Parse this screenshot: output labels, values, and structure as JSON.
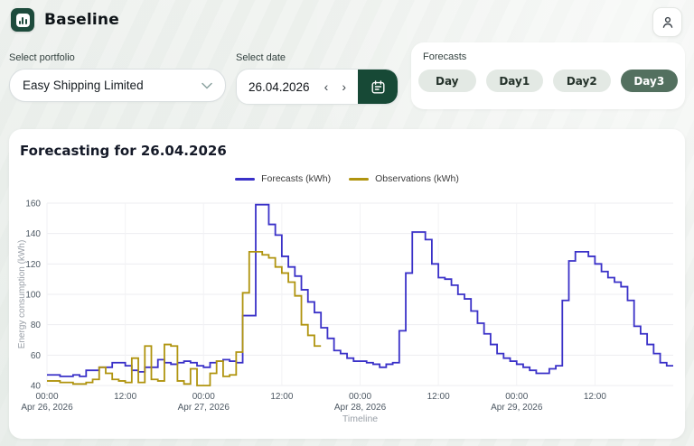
{
  "header": {
    "app_title": "Baseline"
  },
  "filters": {
    "portfolio_label": "Select portfolio",
    "portfolio_value": "Easy Shipping Limited",
    "date_label": "Select date",
    "date_value": "26.04.2026",
    "prev_char": "‹",
    "next_char": "›"
  },
  "forecasts_panel": {
    "title": "Forecasts",
    "options": [
      {
        "label": "Day",
        "selected": false
      },
      {
        "label": "Day1",
        "selected": false
      },
      {
        "label": "Day2",
        "selected": false
      },
      {
        "label": "Day3",
        "selected": true
      }
    ]
  },
  "chart": {
    "title": "Forecasting for 26.04.2026"
  },
  "colors": {
    "brand_green": "#174936",
    "selected_pill_green": "#53705f",
    "forecast_line": "#3a31c8",
    "observation_line": "#b0940f"
  },
  "chart_data": {
    "type": "line",
    "step": true,
    "title": "Forecasting for 26.04.2026",
    "xlabel": "Timeline",
    "ylabel": "Energy  consumption (kWh)",
    "ylim": [
      40,
      160
    ],
    "y_ticks": [
      40,
      60,
      80,
      100,
      120,
      140,
      160
    ],
    "x_total_hours": 96,
    "x_ticks": [
      {
        "hour": 0,
        "time": "00:00",
        "date": "Apr 26, 2026"
      },
      {
        "hour": 12,
        "time": "12:00"
      },
      {
        "hour": 24,
        "time": "00:00",
        "date": "Apr 27, 2026"
      },
      {
        "hour": 36,
        "time": "12:00"
      },
      {
        "hour": 48,
        "time": "00:00",
        "date": "Apr 28, 2026"
      },
      {
        "hour": 60,
        "time": "12:00"
      },
      {
        "hour": 72,
        "time": "00:00",
        "date": "Apr 29, 2026"
      },
      {
        "hour": 84,
        "time": "12:00"
      }
    ],
    "grid": true,
    "legend_position": "top",
    "series": [
      {
        "name": "Forecasts (kWh)",
        "color": "#3a31c8",
        "start_hour": 0,
        "values": [
          47,
          47,
          46,
          46,
          47,
          46,
          50,
          50,
          52,
          52,
          55,
          55,
          53,
          50,
          49,
          52,
          52,
          57,
          55,
          54,
          55,
          56,
          55,
          53,
          52,
          55,
          56,
          57,
          56,
          55,
          86,
          86,
          159,
          159,
          146,
          139,
          125,
          118,
          112,
          103,
          95,
          88,
          78,
          71,
          63,
          61,
          58,
          56,
          56,
          55,
          54,
          52,
          54,
          55,
          76,
          114,
          141,
          141,
          136,
          120,
          111,
          110,
          106,
          100,
          97,
          89,
          81,
          74,
          67,
          61,
          58,
          56,
          54,
          52,
          50,
          48,
          48,
          51,
          53,
          96,
          122,
          128,
          128,
          125,
          120,
          115,
          111,
          108,
          105,
          96,
          79,
          74,
          67,
          61,
          55,
          53
        ]
      },
      {
        "name": "Observations (kWh)",
        "color": "#b0940f",
        "start_hour": 0,
        "values": [
          43,
          43,
          42,
          42,
          41,
          41,
          42,
          44,
          52,
          48,
          44,
          43,
          42,
          58,
          42,
          66,
          44,
          43,
          67,
          66,
          43,
          41,
          51,
          40,
          40,
          48,
          56,
          46,
          47,
          62,
          101,
          128,
          128,
          126,
          124,
          118,
          114,
          108,
          99,
          80,
          73,
          66
        ]
      }
    ]
  }
}
